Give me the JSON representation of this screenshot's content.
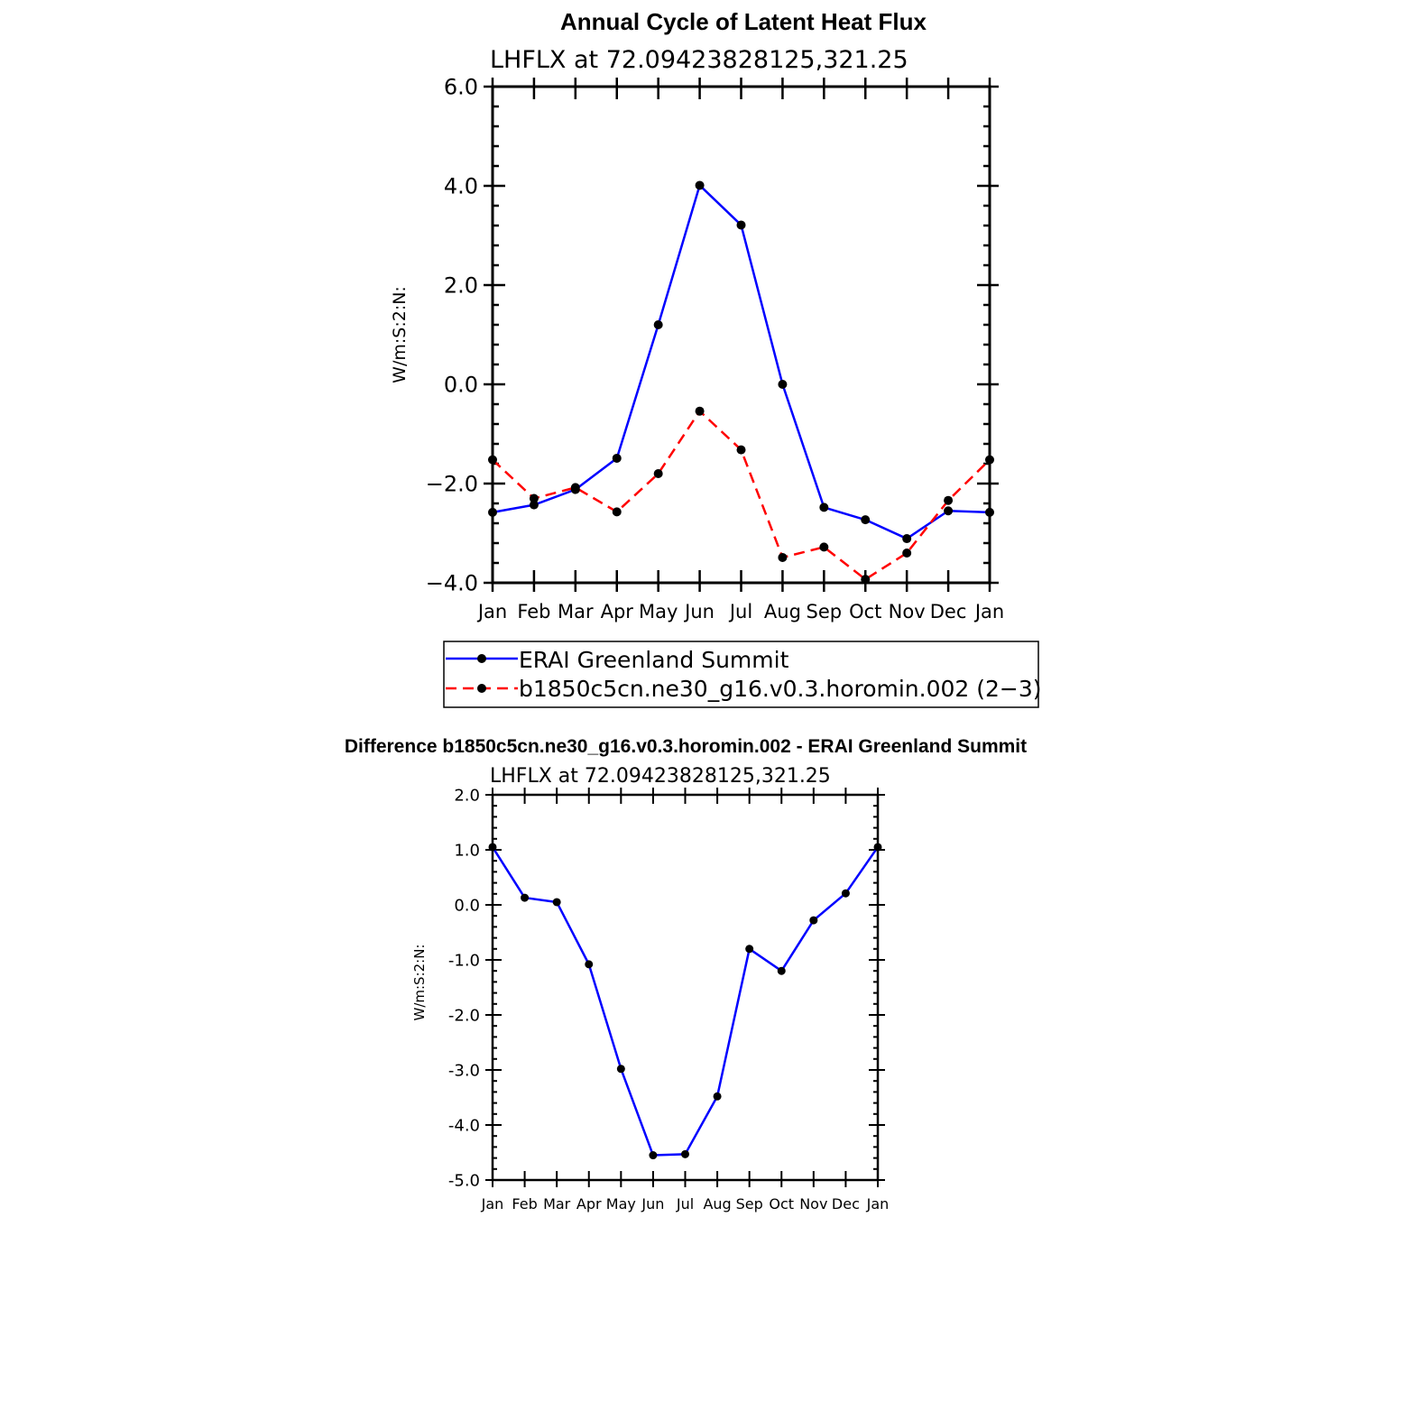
{
  "chart_data": [
    {
      "type": "line",
      "title": "Annual Cycle of Latent Heat Flux",
      "subtitle": "LHFLX at 72.09423828125,321.25",
      "ylabel": "W/m:S:2:N:",
      "xlabel": "",
      "ylim": [
        -4.0,
        6.0
      ],
      "yticks": [
        {
          "value": 6.0,
          "label": "6.0"
        },
        {
          "value": 4.0,
          "label": "4.0"
        },
        {
          "value": 2.0,
          "label": "2.0"
        },
        {
          "value": 0.0,
          "label": "0.0"
        },
        {
          "value": -2.0,
          "label": "−2.0"
        },
        {
          "value": -4.0,
          "label": "−4.0"
        }
      ],
      "categories": [
        "Jan",
        "Feb",
        "Mar",
        "Apr",
        "May",
        "Jun",
        "Jul",
        "Aug",
        "Sep",
        "Oct",
        "Nov",
        "Dec",
        "Jan"
      ],
      "series": [
        {
          "name": "ERAI Greenland Summit",
          "color": "#0000ff",
          "dashed": false,
          "values": [
            -2.58,
            -2.43,
            -2.12,
            -1.49,
            1.2,
            4.01,
            3.21,
            0.0,
            -2.48,
            -2.73,
            -3.11,
            -2.55,
            -2.58
          ]
        },
        {
          "name": "b1850c5cn.ne30_g16.v0.3.horomin.002 (2−3)",
          "color": "#ff0000",
          "dashed": true,
          "values": [
            -1.52,
            -2.3,
            -2.08,
            -2.57,
            -1.8,
            -0.54,
            -1.32,
            -3.49,
            -3.28,
            -3.93,
            -3.4,
            -2.34,
            -1.52
          ]
        }
      ],
      "legend_position": "below"
    },
    {
      "type": "line",
      "title": "Difference b1850c5cn.ne30_g16.v0.3.horomin.002 - ERAI Greenland Summit",
      "subtitle": "LHFLX at 72.09423828125,321.25",
      "ylabel": "W/m:S:2:N:",
      "xlabel": "",
      "ylim": [
        -5.0,
        2.0
      ],
      "yticks": [
        {
          "value": 2.0,
          "label": "2.0"
        },
        {
          "value": 1.0,
          "label": "1.0"
        },
        {
          "value": 0.0,
          "label": "0.0"
        },
        {
          "value": -1.0,
          "label": "-1.0"
        },
        {
          "value": -2.0,
          "label": "-2.0"
        },
        {
          "value": -3.0,
          "label": "-3.0"
        },
        {
          "value": -4.0,
          "label": "-4.0"
        },
        {
          "value": -5.0,
          "label": "-5.0"
        }
      ],
      "categories": [
        "Jan",
        "Feb",
        "Mar",
        "Apr",
        "May",
        "Jun",
        "Jul",
        "Aug",
        "Sep",
        "Oct",
        "Nov",
        "Dec",
        "Jan"
      ],
      "series": [
        {
          "name": "Difference",
          "color": "#0000ff",
          "dashed": false,
          "values": [
            1.05,
            0.13,
            0.05,
            -1.08,
            -2.98,
            -4.55,
            -4.53,
            -3.48,
            -0.8,
            -1.2,
            -0.28,
            0.21,
            1.05
          ]
        }
      ]
    }
  ]
}
